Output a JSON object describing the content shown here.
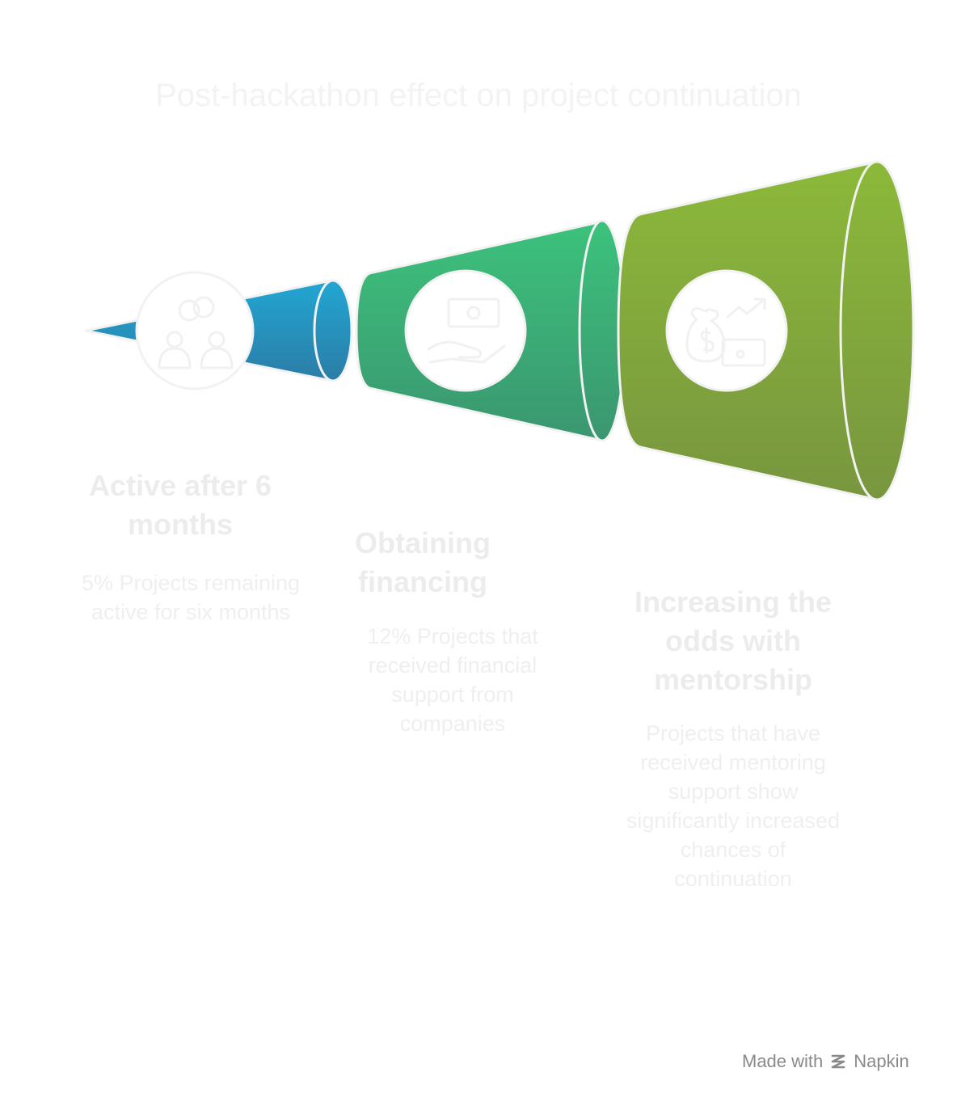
{
  "title": "Post-hackathon effect on project continuation",
  "stages": [
    {
      "title": "Active after 6 months",
      "description": "5% Projects remaining active for six months",
      "icon": "people-link-icon",
      "color_top": "#22a6d3",
      "color_bottom": "#2b7da6"
    },
    {
      "title": "Obtaining financing",
      "description": "12% Projects that received financial support from companies",
      "icon": "money-hand-icon",
      "color_top": "#3cc27c",
      "color_bottom": "#3b9670"
    },
    {
      "title": "Increasing the odds with mentorship",
      "description": "Projects that have received mentoring support show significantly increased chances of continuation",
      "icon": "money-growth-icon",
      "color_top": "#8cb93a",
      "color_bottom": "#78963f"
    }
  ],
  "footer": {
    "made_with": "Made with",
    "brand": "Napkin",
    "logo_icon": "napkin-logo-icon"
  }
}
